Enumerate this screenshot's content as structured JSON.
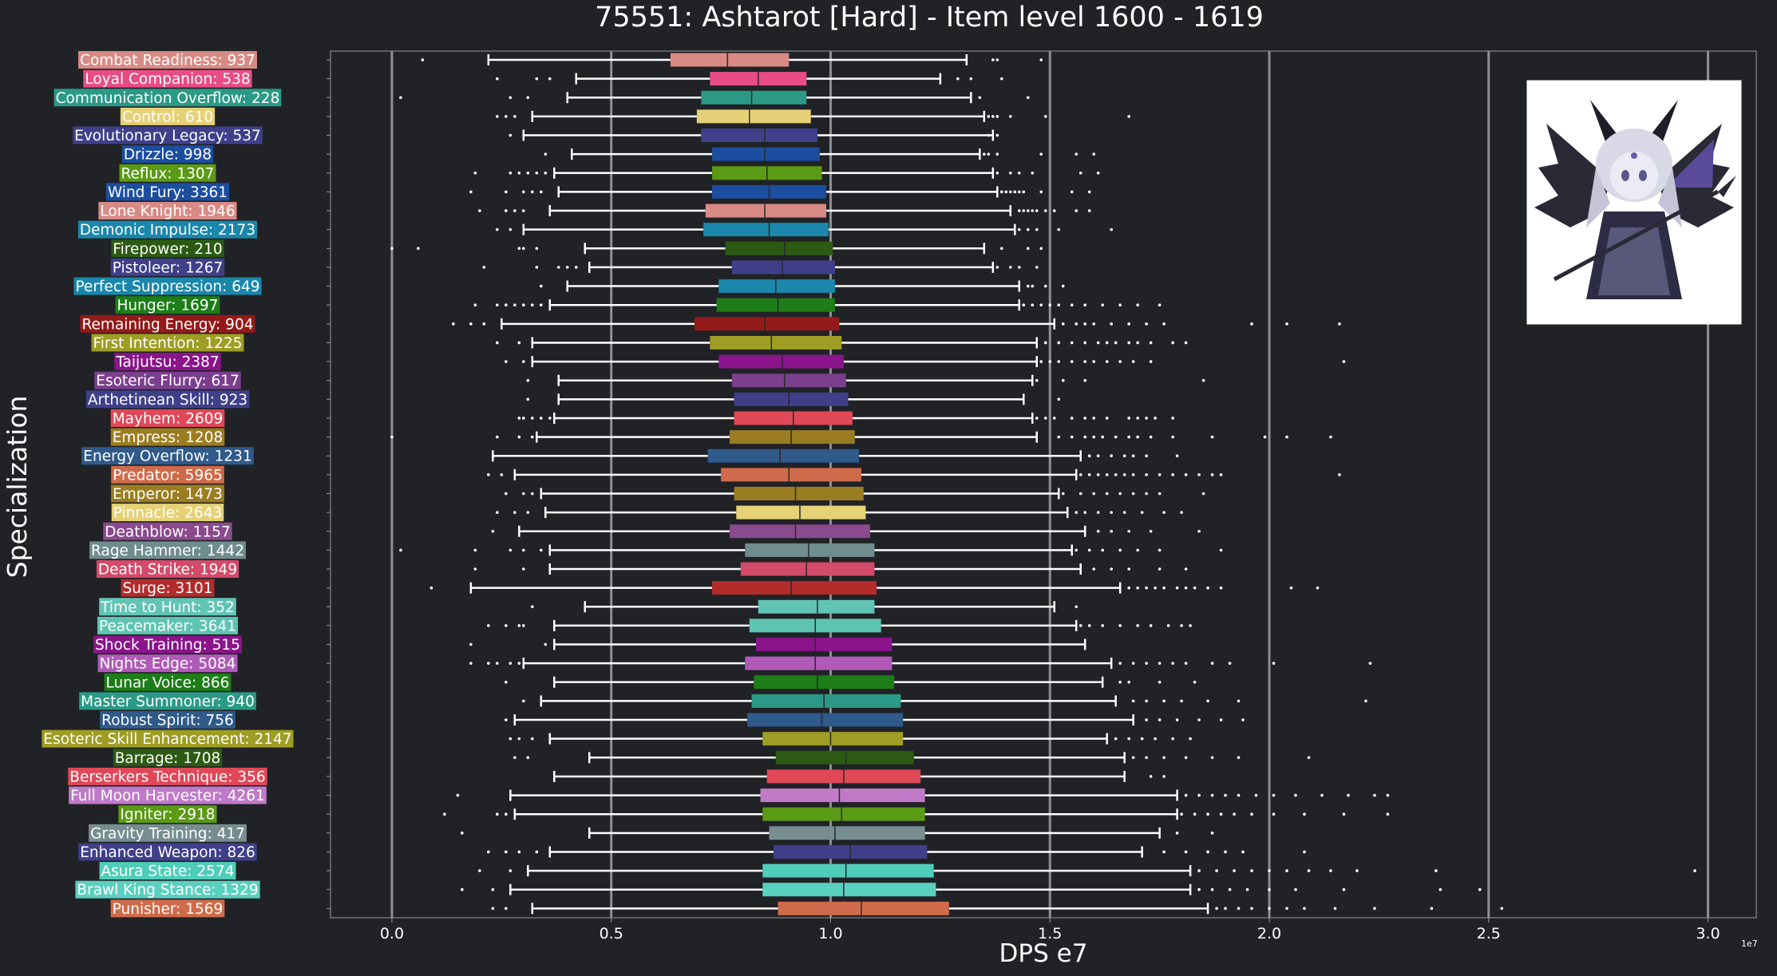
{
  "chart_data": {
    "type": "box",
    "orientation": "horizontal",
    "title": "75551: Ashtarot [Hard] - Item level 1600 - 1619",
    "xlabel": "DPS e7",
    "ylabel": "Specialization",
    "x_offset_label": "1e7",
    "xlim": [
      -0.14,
      3.11
    ],
    "xticks": [
      0.0,
      0.5,
      1.0,
      1.5,
      2.0,
      2.5,
      3.0
    ],
    "xtick_labels": [
      "0.0",
      "0.5",
      "1.0",
      "1.5",
      "2.0",
      "2.5",
      "3.0"
    ],
    "grid": "vertical lines at x ticks",
    "legend": "none",
    "image_inset": "boss portrait, top-right",
    "categories": [
      {
        "label": "Combat Readiness: 937",
        "color": "#d88a84",
        "stats": [
          0.22,
          0.635,
          0.765,
          0.905,
          1.31
        ],
        "outliers": [
          0.07,
          1.37,
          1.38,
          1.48
        ]
      },
      {
        "label": "Loyal Companion: 538",
        "color": "#e84c84",
        "stats": [
          0.42,
          0.725,
          0.835,
          0.945,
          1.25
        ],
        "outliers": [
          0.24,
          0.33,
          0.36,
          1.29,
          1.32,
          1.39
        ]
      },
      {
        "label": "Communication Overflow: 228",
        "color": "#2a9a86",
        "stats": [
          0.4,
          0.705,
          0.82,
          0.945,
          1.32
        ],
        "outliers": [
          0.02,
          0.27,
          0.31,
          1.34,
          1.45
        ]
      },
      {
        "label": "Control: 610",
        "color": "#e6d176",
        "stats": [
          0.32,
          0.695,
          0.815,
          0.955,
          1.35
        ],
        "outliers": [
          0.24,
          0.26,
          0.28,
          1.36,
          1.37,
          1.38,
          1.41,
          1.49,
          1.68
        ]
      },
      {
        "label": "Evolutionary Legacy: 537",
        "color": "#3f3f8a",
        "stats": [
          0.3,
          0.705,
          0.85,
          0.97,
          1.37
        ],
        "outliers": [
          0.27,
          1.36,
          1.38
        ]
      },
      {
        "label": "Drizzle: 998",
        "color": "#1c4ea0",
        "stats": [
          0.41,
          0.73,
          0.85,
          0.975,
          1.34
        ],
        "outliers": [
          0.35,
          1.35,
          1.36,
          1.38,
          1.48,
          1.56,
          1.6
        ]
      },
      {
        "label": "Reflux: 1307",
        "color": "#5b9a14",
        "stats": [
          0.37,
          0.73,
          0.855,
          0.98,
          1.37
        ],
        "outliers": [
          0.19,
          0.27,
          0.29,
          0.31,
          0.33,
          0.35,
          1.38,
          1.41,
          1.43,
          1.46,
          1.57,
          1.61
        ]
      },
      {
        "label": "Wind Fury: 3361",
        "color": "#1c4ea0",
        "stats": [
          0.38,
          0.73,
          0.86,
          0.99,
          1.38
        ],
        "outliers": [
          0.18,
          0.26,
          0.3,
          0.32,
          0.34,
          1.39,
          1.4,
          1.41,
          1.42,
          1.43,
          1.44,
          1.48,
          1.55,
          1.59
        ]
      },
      {
        "label": "Lone Knight: 1946",
        "color": "#d88a84",
        "stats": [
          0.36,
          0.715,
          0.85,
          0.99,
          1.41
        ],
        "outliers": [
          0.2,
          0.26,
          0.28,
          0.3,
          1.43,
          1.44,
          1.45,
          1.46,
          1.47,
          1.49,
          1.51,
          1.56,
          1.59
        ]
      },
      {
        "label": "Demonic Impulse: 2173",
        "color": "#1a87ab",
        "stats": [
          0.3,
          0.71,
          0.86,
          0.995,
          1.42
        ],
        "outliers": [
          0.24,
          0.27,
          1.43,
          1.45,
          1.47,
          1.52,
          1.64
        ]
      },
      {
        "label": "Firepower: 210",
        "color": "#2c5a12",
        "stats": [
          0.44,
          0.76,
          0.895,
          1.005,
          1.35
        ],
        "outliers": [
          0.0,
          0.06,
          0.29,
          0.3,
          0.33,
          1.39,
          1.45,
          1.48
        ]
      },
      {
        "label": "Pistoleer: 1267",
        "color": "#3f3f8a",
        "stats": [
          0.45,
          0.775,
          0.89,
          1.01,
          1.37
        ],
        "outliers": [
          0.21,
          0.33,
          0.38,
          0.4,
          0.42,
          1.38,
          1.41,
          1.43,
          1.47
        ]
      },
      {
        "label": "Perfect Suppression: 649",
        "color": "#1a87ab",
        "stats": [
          0.4,
          0.745,
          0.875,
          1.01,
          1.43
        ],
        "outliers": [
          0.34,
          1.45,
          1.46,
          1.49,
          1.53
        ]
      },
      {
        "label": "Hunger: 1697",
        "color": "#1d7d18",
        "stats": [
          0.36,
          0.74,
          0.88,
          1.01,
          1.43
        ],
        "outliers": [
          0.19,
          0.24,
          0.26,
          0.28,
          0.3,
          0.32,
          0.34,
          1.44,
          1.46,
          1.48,
          1.5,
          1.52,
          1.55,
          1.58,
          1.62,
          1.66,
          1.7,
          1.75
        ]
      },
      {
        "label": "Remaining Energy: 904",
        "color": "#941a1a",
        "stats": [
          0.25,
          0.69,
          0.85,
          1.02,
          1.51
        ],
        "outliers": [
          0.14,
          0.18,
          0.21,
          1.53,
          1.56,
          1.58,
          1.6,
          1.64,
          1.68,
          1.72,
          1.76,
          1.96,
          2.04,
          2.16
        ]
      },
      {
        "label": "First Intention: 1225",
        "color": "#9e9d24",
        "stats": [
          0.32,
          0.725,
          0.865,
          1.025,
          1.47
        ],
        "outliers": [
          0.24,
          0.29,
          1.49,
          1.52,
          1.55,
          1.58,
          1.61,
          1.63,
          1.65,
          1.68,
          1.7,
          1.73,
          1.78,
          1.81
        ]
      },
      {
        "label": "Taijutsu: 2387",
        "color": "#8a148a",
        "stats": [
          0.32,
          0.745,
          0.89,
          1.03,
          1.47
        ],
        "outliers": [
          0.26,
          0.3,
          1.48,
          1.5,
          1.52,
          1.55,
          1.58,
          1.6,
          1.63,
          1.66,
          1.69,
          1.73,
          2.17
        ]
      },
      {
        "label": "Esoteric Flurry: 617",
        "color": "#7b3f8e",
        "stats": [
          0.38,
          0.775,
          0.895,
          1.035,
          1.46
        ],
        "outliers": [
          0.31,
          1.47,
          1.53,
          1.58,
          1.85
        ]
      },
      {
        "label": "Arthetinean Skill: 923",
        "color": "#3f3f8a",
        "stats": [
          0.38,
          0.78,
          0.905,
          1.04,
          1.44
        ],
        "outliers": [
          0.31,
          1.52
        ]
      },
      {
        "label": "Mayhem: 2609",
        "color": "#e04858",
        "stats": [
          0.37,
          0.78,
          0.915,
          1.05,
          1.46
        ],
        "outliers": [
          0.29,
          0.3,
          0.32,
          0.34,
          0.36,
          1.47,
          1.49,
          1.51,
          1.55,
          1.58,
          1.6,
          1.63,
          1.68,
          1.7,
          1.72,
          1.74,
          1.78
        ]
      },
      {
        "label": "Empress: 1208",
        "color": "#9b7d21",
        "stats": [
          0.33,
          0.77,
          0.91,
          1.055,
          1.47
        ],
        "outliers": [
          0.0,
          0.24,
          0.29,
          0.32,
          1.52,
          1.55,
          1.58,
          1.6,
          1.62,
          1.65,
          1.68,
          1.7,
          1.73,
          1.78,
          1.87,
          1.99,
          2.04,
          2.14
        ]
      },
      {
        "label": "Energy Overflow: 1231",
        "color": "#2f5a8a",
        "stats": [
          0.23,
          0.72,
          0.885,
          1.065,
          1.57
        ],
        "outliers": [
          1.59,
          1.61,
          1.64,
          1.67,
          1.69,
          1.72,
          1.79
        ]
      },
      {
        "label": "Predator: 5965",
        "color": "#cf6b4a",
        "stats": [
          0.28,
          0.75,
          0.905,
          1.07,
          1.56
        ],
        "outliers": [
          0.22,
          0.25,
          1.57,
          1.59,
          1.61,
          1.63,
          1.65,
          1.67,
          1.69,
          1.72,
          1.75,
          1.78,
          1.81,
          1.84,
          1.87,
          1.89,
          2.16
        ]
      },
      {
        "label": "Emperor: 1473",
        "color": "#9b7d21",
        "stats": [
          0.34,
          0.78,
          0.92,
          1.075,
          1.52
        ],
        "outliers": [
          0.26,
          0.3,
          0.32,
          1.53,
          1.57,
          1.6,
          1.63,
          1.66,
          1.69,
          1.72,
          1.75,
          1.85
        ]
      },
      {
        "label": "Pinnacle: 2643",
        "color": "#e6d176",
        "stats": [
          0.35,
          0.785,
          0.93,
          1.08,
          1.54
        ],
        "outliers": [
          0.24,
          0.28,
          0.31,
          1.56,
          1.58,
          1.61,
          1.64,
          1.67,
          1.71,
          1.76,
          1.8
        ]
      },
      {
        "label": "Deathblow: 1157",
        "color": "#8b4a8e",
        "stats": [
          0.29,
          0.77,
          0.92,
          1.09,
          1.58
        ],
        "outliers": [
          0.23,
          1.61,
          1.64,
          1.68,
          1.73,
          1.84
        ]
      },
      {
        "label": "Rage Hammer: 1442",
        "color": "#6f8c8e",
        "stats": [
          0.36,
          0.805,
          0.95,
          1.1,
          1.55
        ],
        "outliers": [
          0.02,
          0.19,
          0.27,
          0.3,
          0.34,
          1.56,
          1.59,
          1.62,
          1.66,
          1.7,
          1.75,
          1.89
        ]
      },
      {
        "label": "Death Strike: 1949",
        "color": "#d44a6a",
        "stats": [
          0.36,
          0.795,
          0.945,
          1.1,
          1.57
        ],
        "outliers": [
          0.19,
          0.3,
          1.6,
          1.64,
          1.68,
          1.75,
          1.81
        ]
      },
      {
        "label": "Surge: 3101",
        "color": "#b32c2c",
        "stats": [
          0.18,
          0.73,
          0.91,
          1.105,
          1.66
        ],
        "outliers": [
          0.09,
          1.68,
          1.7,
          1.72,
          1.74,
          1.76,
          1.79,
          1.81,
          1.83,
          1.86,
          1.89,
          2.05,
          2.11
        ]
      },
      {
        "label": "Time to Hunt: 352",
        "color": "#62c4b4",
        "stats": [
          0.44,
          0.835,
          0.97,
          1.1,
          1.51
        ],
        "outliers": [
          0.32,
          1.56
        ]
      },
      {
        "label": "Peacemaker: 3641",
        "color": "#5ec4b2",
        "stats": [
          0.37,
          0.815,
          0.965,
          1.115,
          1.56
        ],
        "outliers": [
          0.22,
          0.26,
          0.29,
          0.3,
          1.57,
          1.59,
          1.62,
          1.66,
          1.7,
          1.73,
          1.77,
          1.8,
          1.82
        ]
      },
      {
        "label": "Shock Training: 515",
        "color": "#8a148a",
        "stats": [
          0.37,
          0.83,
          0.965,
          1.14,
          1.58
        ],
        "outliers": [
          0.18,
          0.35
        ]
      },
      {
        "label": "Nights Edge: 5084",
        "color": "#b05ab8",
        "stats": [
          0.3,
          0.805,
          0.965,
          1.14,
          1.64
        ],
        "outliers": [
          0.18,
          0.22,
          0.24,
          0.27,
          0.29,
          1.66,
          1.69,
          1.72,
          1.75,
          1.78,
          1.81,
          1.87,
          1.91,
          2.01,
          2.23
        ]
      },
      {
        "label": "Lunar Voice: 866",
        "color": "#1d7d18",
        "stats": [
          0.37,
          0.825,
          0.97,
          1.145,
          1.62
        ],
        "outliers": [
          0.26,
          1.66,
          1.68,
          1.75,
          1.83
        ]
      },
      {
        "label": "Master Summoner: 940",
        "color": "#2a9a86",
        "stats": [
          0.34,
          0.82,
          0.985,
          1.16,
          1.65
        ],
        "outliers": [
          0.3,
          1.69,
          1.72,
          1.76,
          1.8,
          1.86,
          1.93,
          2.22
        ]
      },
      {
        "label": "Robust Spirit: 756",
        "color": "#2f5a8a",
        "stats": [
          0.28,
          0.81,
          0.98,
          1.165,
          1.69
        ],
        "outliers": [
          0.26,
          1.72,
          1.75,
          1.79,
          1.84,
          1.89,
          1.94
        ]
      },
      {
        "label": "Esoteric Skill Enhancement: 2147",
        "color": "#9e9d24",
        "stats": [
          0.36,
          0.845,
          1.0,
          1.165,
          1.63
        ],
        "outliers": [
          0.27,
          0.29,
          0.32,
          1.65,
          1.68,
          1.71,
          1.74,
          1.78,
          1.82
        ]
      },
      {
        "label": "Barrage: 1708",
        "color": "#2c5a12",
        "stats": [
          0.45,
          0.875,
          1.035,
          1.19,
          1.67
        ],
        "outliers": [
          0.28,
          0.31,
          1.69,
          1.72,
          1.76,
          1.81,
          1.87,
          1.93,
          2.09
        ]
      },
      {
        "label": "Berserkers Technique: 356",
        "color": "#e04858",
        "stats": [
          0.37,
          0.855,
          1.03,
          1.205,
          1.67
        ],
        "outliers": [
          1.73,
          1.76
        ]
      },
      {
        "label": "Full Moon Harvester: 4261",
        "color": "#c07ac8",
        "stats": [
          0.27,
          0.84,
          1.02,
          1.215,
          1.79
        ],
        "outliers": [
          0.15,
          1.81,
          1.84,
          1.87,
          1.9,
          1.93,
          1.97,
          2.01,
          2.06,
          2.12,
          2.18,
          2.24,
          2.27
        ]
      },
      {
        "label": "Igniter: 2918",
        "color": "#5b9a14",
        "stats": [
          0.28,
          0.845,
          1.025,
          1.215,
          1.79
        ],
        "outliers": [
          0.12,
          0.24,
          0.26,
          1.8,
          1.83,
          1.86,
          1.89,
          1.92,
          1.96,
          2.01,
          2.08,
          2.17,
          2.27
        ]
      },
      {
        "label": "Gravity Training: 417",
        "color": "#778e90",
        "stats": [
          0.45,
          0.86,
          1.01,
          1.215,
          1.75
        ],
        "outliers": [
          0.16,
          1.79,
          1.87
        ]
      },
      {
        "label": "Enhanced Weapon: 826",
        "color": "#3f3f8a",
        "stats": [
          0.36,
          0.87,
          1.045,
          1.22,
          1.71
        ],
        "outliers": [
          0.22,
          0.26,
          0.29,
          0.33,
          1.76,
          1.81,
          1.86,
          1.9,
          1.94,
          2.08
        ]
      },
      {
        "label": "Asura State: 2574",
        "color": "#4fcdb8",
        "stats": [
          0.31,
          0.845,
          1.035,
          1.235,
          1.82
        ],
        "outliers": [
          0.2,
          0.27,
          1.84,
          1.88,
          1.92,
          1.96,
          2.0,
          2.04,
          2.09,
          2.14,
          2.2,
          2.38,
          2.97
        ]
      },
      {
        "label": "Brawl King Stance: 1329",
        "color": "#5ad0bf",
        "stats": [
          0.27,
          0.845,
          1.03,
          1.24,
          1.82
        ],
        "outliers": [
          0.16,
          0.23,
          1.84,
          1.87,
          1.91,
          1.95,
          2.0,
          2.06,
          2.17,
          2.39,
          2.48
        ]
      },
      {
        "label": "Punisher: 1569",
        "color": "#cf6b4a",
        "stats": [
          0.32,
          0.88,
          1.07,
          1.27,
          1.86
        ],
        "outliers": [
          0.23,
          0.26,
          1.88,
          1.9,
          1.93,
          1.96,
          2.0,
          2.04,
          2.08,
          2.15,
          2.24,
          2.37,
          2.53
        ]
      }
    ]
  }
}
